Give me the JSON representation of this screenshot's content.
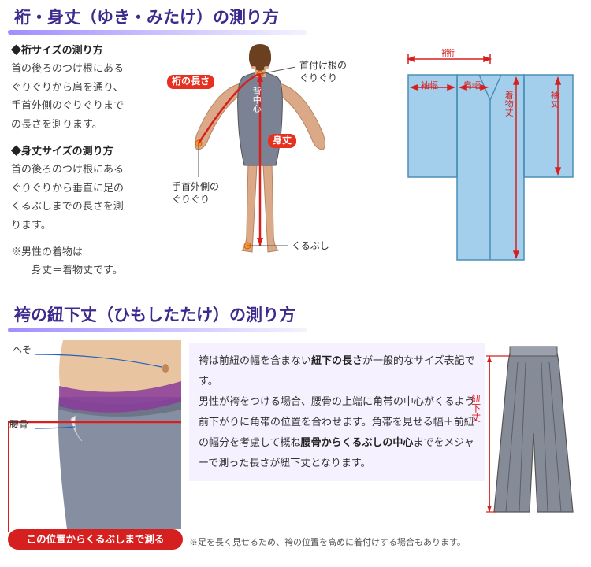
{
  "colors": {
    "title": "#3d2a8c",
    "underline": "#b8a8ff",
    "red": "#d62020",
    "kimono_fill": "#a4cfec",
    "kimono_stroke": "#4a8fb5",
    "skin": "#dca988",
    "hair": "#6b4020",
    "suit": "#7a8294",
    "hakama_fill": "#868b98",
    "hakama_stroke": "#555",
    "waist_skin": "#e8c4a0",
    "waist_cloth": "#868ea2",
    "obi": "#8a3c9a"
  },
  "section1": {
    "title": "裄・身丈（ゆき・みたけ）の測り方",
    "yuki_head": "◆裄サイズの測り方",
    "yuki_body": "首の後ろのつけ根にあるぐりぐりから肩を通り、手首外側のぐりぐりまでの長さを測ります。",
    "mitake_head": "◆身丈サイズの測り方",
    "mitake_body": "首の後ろのつけ根にあるぐりぐりから垂直に足のくるぶしまでの長さを測ります。",
    "note": "※男性の着物は\n　　身丈＝着物丈です。",
    "body_labels": {
      "yuki_len": "裄の長さ",
      "back_center": "背中心",
      "mitake": "身丈",
      "neck_root": "首付け根の\nぐりぐり",
      "wrist": "手首外側の\nぐりぐり",
      "ankle": "くるぶし"
    },
    "kimono_labels": {
      "yuki": "裄",
      "sode_haba": "袖幅",
      "kata_haba": "肩幅",
      "kimono_take": "着物丈",
      "sode_take": "袖丈"
    }
  },
  "section2": {
    "title": "袴の紐下丈（ひもしたたけ）の測り方",
    "waist_labels": {
      "heso": "へそ",
      "koshibone": "腰骨"
    },
    "red_bar": "この位置からくるぶしまで測る",
    "para_html": "袴は前紐の幅を含まない<span class='em1'>紐下の長さ</span>が一般的なサイズ表記です。\n男性が袴をつける場合、腰骨の上端に角帯の中心がくるよう前下がりに角帯の位置を合わせます。角帯を見せる幅＋前紐の幅分を考慮して概ね<span class='em1'>腰骨からくるぶしの中心</span>までをメジャーで測った長さが紐下丈となります。",
    "hakama_label": "紐下丈",
    "footnote": "※足を長く見せるため、袴の位置を高めに着付けする場合もあります。"
  }
}
